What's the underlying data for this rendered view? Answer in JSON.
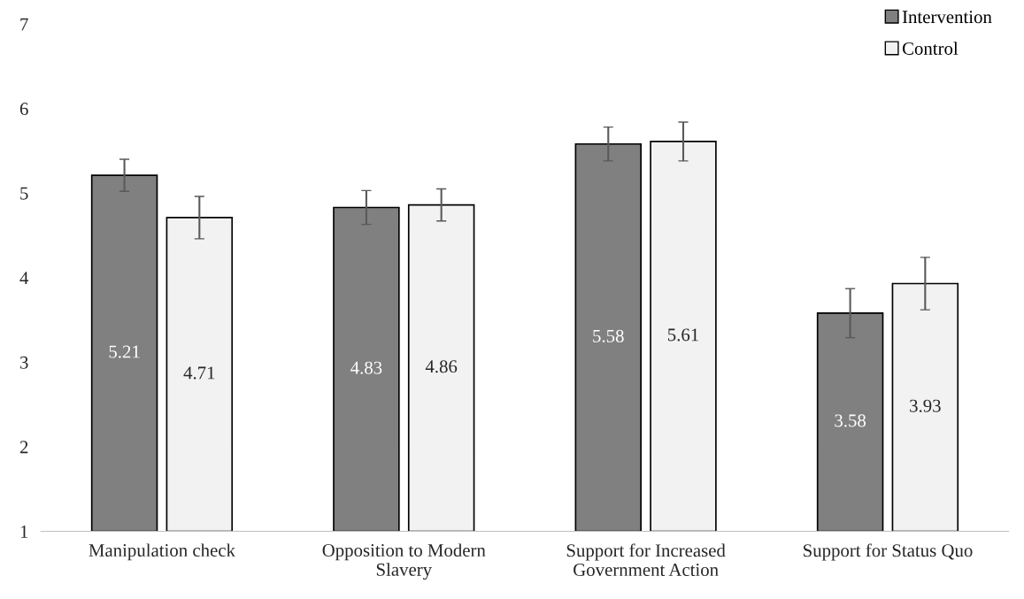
{
  "chart_data": {
    "type": "bar",
    "categories": [
      "Manipulation check",
      "Opposition to Modern Slavery",
      "Support for Increased Government Action",
      "Support for Status Quo"
    ],
    "series": [
      {
        "name": "Intervention",
        "color": "#808080",
        "values": [
          5.21,
          4.83,
          5.58,
          3.58
        ],
        "errors": [
          0.19,
          0.2,
          0.2,
          0.29
        ]
      },
      {
        "name": "Control",
        "color": "#f2f2f2",
        "values": [
          4.71,
          4.86,
          5.61,
          3.93
        ],
        "errors": [
          0.25,
          0.19,
          0.23,
          0.31
        ]
      }
    ],
    "ylim": [
      1,
      7
    ],
    "yticks": [
      1,
      2,
      3,
      4,
      5,
      6,
      7
    ],
    "grid": false,
    "legend": "top right",
    "data_labels": true
  }
}
